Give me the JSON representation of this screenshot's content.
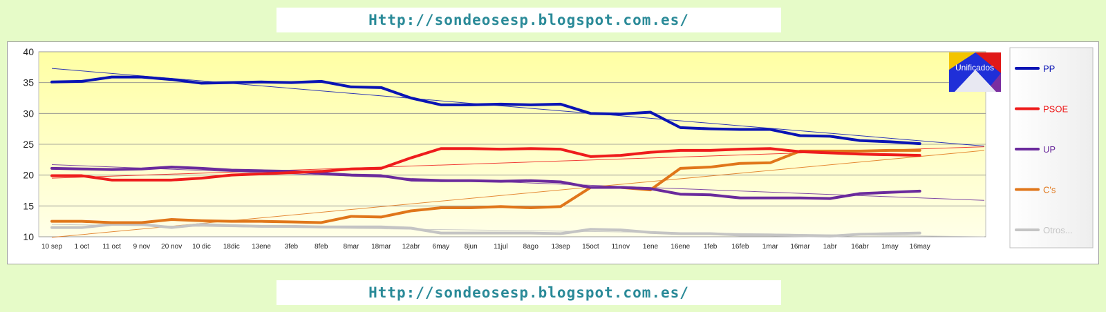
{
  "banner": {
    "top_text": "Http://sondeosesp.blogspot.com.es/",
    "bottom_text": "Http://sondeosesp.blogspot.com.es/"
  },
  "logo": {
    "text": "Unificados"
  },
  "colors": {
    "PP": "#0a14b4",
    "PSOE": "#ee1c1c",
    "UP": "#6a2a9c",
    "Cs": "#e0761a",
    "Otros": "#c4c4c4"
  },
  "chart_data": {
    "type": "line",
    "title": "",
    "xlabel": "",
    "ylabel": "",
    "ylim": [
      10,
      40
    ],
    "yticks": [
      10,
      15,
      20,
      25,
      30,
      35,
      40
    ],
    "grid": true,
    "legend_position": "right",
    "categories": [
      "10 sep",
      "1 oct",
      "11 oct",
      "9 nov",
      "20 nov",
      "10 dic",
      "18dic",
      "13ene",
      "3feb",
      "8feb",
      "8mar",
      "18mar",
      "12abr",
      "6may",
      "8jun",
      "11jul",
      "8ago",
      "13sep",
      "15oct",
      "11nov",
      "1ene",
      "16ene",
      "1feb",
      "16feb",
      "1mar",
      "16mar",
      "1abr",
      "16abr",
      "1may",
      "16may"
    ],
    "series": [
      {
        "name": "PP",
        "color": "#0a14b4",
        "values": [
          35.1,
          35.2,
          35.9,
          35.9,
          35.5,
          34.9,
          35.0,
          35.1,
          35.0,
          35.2,
          34.3,
          34.2,
          32.5,
          31.4,
          31.4,
          31.5,
          31.4,
          31.5,
          30.0,
          29.9,
          30.2,
          27.7,
          27.5,
          27.4,
          27.4,
          26.4,
          26.3,
          25.6,
          25.4,
          25.1
        ]
      },
      {
        "name": "PSOE",
        "color": "#ee1c1c",
        "values": [
          19.9,
          19.9,
          19.2,
          19.2,
          19.2,
          19.5,
          20.0,
          20.2,
          20.4,
          20.6,
          21.0,
          21.1,
          22.8,
          24.3,
          24.3,
          24.2,
          24.3,
          24.2,
          23.0,
          23.2,
          23.7,
          24.0,
          24.0,
          24.2,
          24.3,
          23.8,
          23.6,
          23.4,
          23.3,
          23.2
        ]
      },
      {
        "name": "UP",
        "color": "#6a2a9c",
        "values": [
          21.1,
          21.0,
          20.9,
          21.0,
          21.3,
          21.1,
          20.8,
          20.7,
          20.6,
          20.3,
          20.0,
          19.9,
          19.2,
          19.1,
          19.1,
          19.0,
          19.1,
          18.9,
          18.0,
          18.0,
          17.8,
          16.9,
          16.8,
          16.3,
          16.3,
          16.3,
          16.2,
          17.0,
          17.2,
          17.4
        ]
      },
      {
        "name": "C's",
        "color": "#e0761a",
        "values": [
          12.5,
          12.5,
          12.3,
          12.3,
          12.8,
          12.6,
          12.5,
          12.5,
          12.4,
          12.3,
          13.3,
          13.2,
          14.2,
          14.7,
          14.7,
          14.9,
          14.7,
          14.9,
          18.0,
          18.0,
          17.6,
          21.1,
          21.3,
          21.9,
          22.0,
          23.9,
          23.9,
          23.9,
          24.0,
          24.0
        ]
      },
      {
        "name": "Otros...",
        "color": "#c4c4c4",
        "values": [
          11.5,
          11.5,
          12.0,
          12.0,
          11.5,
          12.0,
          11.8,
          11.7,
          11.7,
          11.6,
          11.6,
          11.6,
          11.4,
          10.6,
          10.6,
          10.6,
          10.6,
          10.5,
          11.2,
          11.1,
          10.7,
          10.5,
          10.5,
          10.3,
          10.3,
          10.2,
          10.1,
          10.4,
          10.5,
          10.6
        ]
      }
    ],
    "trendlines": [
      {
        "series": "PP",
        "start": 37.3,
        "end": 24.7
      },
      {
        "series": "PSOE",
        "start": 19.5,
        "end": 24.6
      },
      {
        "series": "UP",
        "start": 21.7,
        "end": 15.9
      },
      {
        "series": "C's",
        "start": 9.9,
        "end": 24.0
      },
      {
        "series": "Otros...",
        "start": 12.0,
        "end": 10.0
      }
    ]
  }
}
